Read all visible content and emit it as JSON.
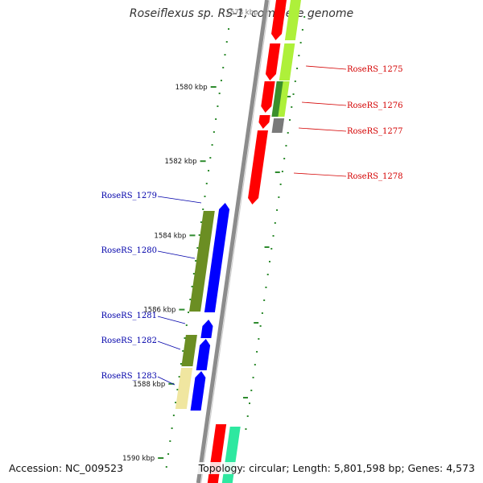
{
  "title": "Roseiflexus sp. RS-1, complete genome",
  "top_kbp_label": "1578 kbp",
  "footer": {
    "accession_label": "Accession:",
    "accession": "NC_009523",
    "topology_label": "Topology:",
    "topology": "circular",
    "length_label": "Length:",
    "length": "5,801,598 bp",
    "genes_label": "Genes:",
    "genes": "4,573"
  },
  "ruler_ticks": [
    {
      "kbp": 1580,
      "label": "1580 kbp"
    },
    {
      "kbp": 1582,
      "label": "1582 kbp"
    },
    {
      "kbp": 1584,
      "label": "1584 kbp"
    },
    {
      "kbp": 1586,
      "label": "1586 kbp"
    },
    {
      "kbp": 1588,
      "label": "1588 kbp"
    },
    {
      "kbp": 1590,
      "label": "1590 kbp"
    }
  ],
  "gene_labels": {
    "forward": [
      "RoseRS_1275",
      "RoseRS_1276",
      "RoseRS_1277",
      "RoseRS_1278"
    ],
    "reverse": [
      "RoseRS_1279",
      "RoseRS_1280",
      "RoseRS_1281",
      "RoseRS_1282",
      "RoseRS_1283"
    ]
  },
  "colors": {
    "forward_label": "#d40000",
    "reverse_label": "#0000aa",
    "backbone": "#8c8c8c",
    "forward_gene": "#ff0000",
    "reverse_gene": "#0000ff",
    "tick": "#2e8b2e",
    "hit_lime": "#aef03a",
    "hit_green": "#3b8f2b",
    "hit_olive": "#6b8e23",
    "hit_gray": "#7a7a7a",
    "hit_tan": "#f0e6a0",
    "hit_teal": "#2ee8a0"
  }
}
